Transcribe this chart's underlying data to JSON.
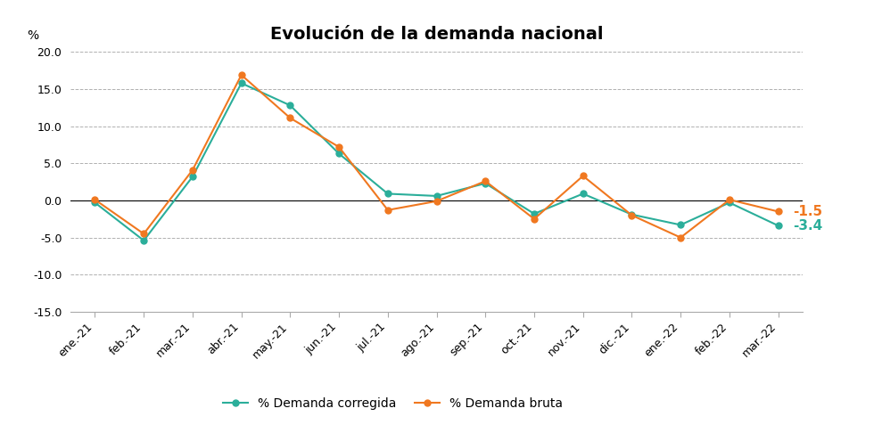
{
  "title": "Evolución de la demanda nacional",
  "ylabel": "%",
  "categories": [
    "ene.-21",
    "feb.-21",
    "mar.-21",
    "abr.-21",
    "may.-21",
    "jun.-21",
    "jul.-21",
    "ago.-21",
    "sep.-21",
    "oct.-21",
    "nov.-21",
    "dic.-21",
    "ene.-22",
    "feb.-22",
    "mar.-22"
  ],
  "demanda_corregida": [
    -0.3,
    -5.4,
    3.2,
    15.8,
    12.8,
    6.3,
    0.9,
    0.6,
    2.3,
    -1.8,
    0.9,
    -1.9,
    -3.3,
    -0.3,
    -3.4
  ],
  "demanda_bruta": [
    0.1,
    -4.5,
    4.1,
    16.9,
    11.1,
    7.2,
    -1.3,
    -0.1,
    2.6,
    -2.5,
    3.3,
    -2.0,
    -5.0,
    0.1,
    -1.5
  ],
  "color_corregida": "#2BAE9A",
  "color_bruta": "#F07820",
  "ylim": [
    -15.0,
    20.0
  ],
  "yticks": [
    -15.0,
    -10.0,
    -5.0,
    0.0,
    5.0,
    10.0,
    15.0,
    20.0
  ],
  "label_corregida": "% Demanda corregida",
  "label_bruta": "% Demanda bruta",
  "annotation_bruta": "-1.5",
  "annotation_corregida": "-3.4",
  "background_color": "#ffffff",
  "grid_color": "#b0b0b0",
  "title_fontsize": 14,
  "tick_fontsize": 9,
  "legend_fontsize": 10
}
